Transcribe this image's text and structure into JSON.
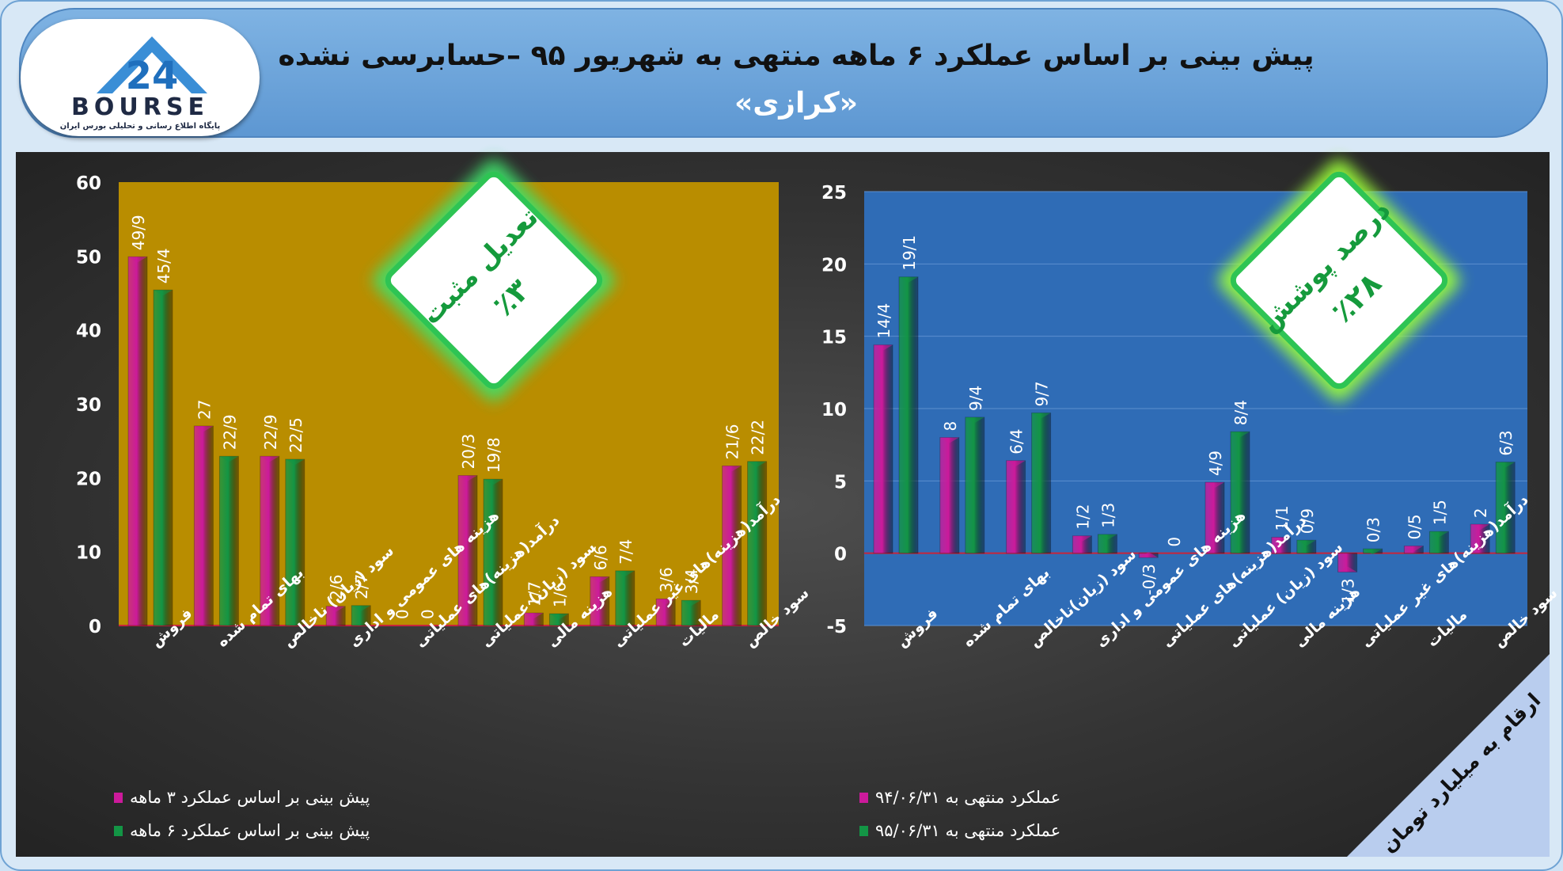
{
  "header": {
    "title_line1": "پیش بینی بر اساس عملکرد ۶ ماهه منتهی به شهریور ۹۵ –حسابرسی نشده",
    "title_line2": "«کرازی»",
    "logo_text": "BOURSE",
    "logo_number": "24",
    "logo_subtitle": "پایگاه اطلاع رسانی و تحلیلی بورس ایران"
  },
  "colors": {
    "series_magenta": "#cc1a9b",
    "series_green": "#139545",
    "left_plot_bg": "#b98d00",
    "right_plot_bg": "#2f6cb6",
    "badge_border": "#2ec454"
  },
  "chart_data": [
    {
      "type": "bar",
      "categories": [
        "فروش",
        "بهای تمام شده",
        "سود (زیان) ناخالص",
        "هزینه های عمومی و اداری",
        "درآمد(هزینه)های عملیاتی",
        "سود (زیان) عملیاتی",
        "هزینه مالی",
        "درآمد(هزینه)های غیر عملیاتی",
        "مالیات",
        "سود خالص"
      ],
      "series": [
        {
          "name": "پیش بینی بر اساس عملکرد ۳ ماهه",
          "values": [
            49.9,
            27,
            22.9,
            2.6,
            0,
            20.3,
            1.7,
            6.6,
            3.6,
            21.6
          ],
          "labels": [
            "49/9",
            "27",
            "22/9",
            "2/6",
            "0",
            "20/3",
            "1/7",
            "6/6",
            "3/6",
            "21/6"
          ]
        },
        {
          "name": "پیش بینی بر اساس عملکرد ۶ ماهه",
          "values": [
            45.4,
            22.9,
            22.5,
            2.7,
            0,
            19.8,
            1.6,
            7.4,
            3.4,
            22.2
          ],
          "labels": [
            "45/4",
            "22/9",
            "22/5",
            "2/7",
            "0",
            "19/8",
            "1/6",
            "7/4",
            "3/4",
            "22/2"
          ]
        }
      ],
      "ylim": [
        0,
        60
      ],
      "yticks": [
        0,
        10,
        20,
        30,
        40,
        50,
        60
      ],
      "badge": {
        "line1": "تعدیل مثبت",
        "line2": "٪۳"
      },
      "legend": "bottom-left"
    },
    {
      "type": "bar",
      "categories": [
        "فروش",
        "بهای تمام شده",
        "سود (زیان)ناخالص",
        "هزینه های عمومی و اداری",
        "درآمد(هزینه)های عملیاتی",
        "سود (زیان) عملیاتی",
        "هزینه مالی",
        "درآمد(هزینه)های غیر عملیاتی",
        "مالیات",
        "سود خالص"
      ],
      "series": [
        {
          "name": "عملکرد منتهی به ۹۴/۰۶/۳۱",
          "values": [
            14.4,
            8,
            6.4,
            1.2,
            -0.3,
            4.9,
            1.1,
            -1.3,
            0.5,
            2
          ],
          "labels": [
            "14/4",
            "8",
            "6/4",
            "1/2",
            "-0/3",
            "4/9",
            "1/1",
            "-1/3",
            "0/5",
            "2"
          ]
        },
        {
          "name": "عملکرد منتهی به ۹۵/۰۶/۳۱",
          "values": [
            19.1,
            9.4,
            9.7,
            1.3,
            0,
            8.4,
            0.9,
            0.3,
            1.5,
            6.3
          ],
          "labels": [
            "19/1",
            "9/4",
            "9/7",
            "1/3",
            "0",
            "8/4",
            "0/9",
            "0/3",
            "1/5",
            "6/3"
          ]
        }
      ],
      "ylim": [
        -5,
        25
      ],
      "yticks": [
        -5,
        0,
        5,
        10,
        15,
        20,
        25
      ],
      "badge": {
        "line1": "درصد پوشش",
        "line2": "٪۲۸"
      },
      "legend": "bottom-left"
    }
  ],
  "corner_note": "ارقام به میلیارد تومان"
}
